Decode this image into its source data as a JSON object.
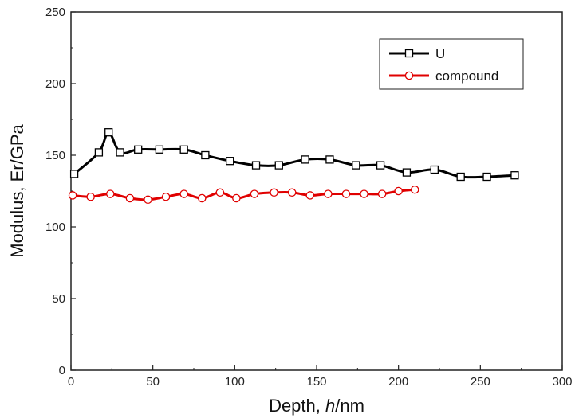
{
  "chart_data": {
    "type": "line",
    "xlabel_parts": [
      "Depth, ",
      "h",
      "/nm"
    ],
    "ylabel": "Modulus, Er/GPa",
    "xlim": [
      0,
      300
    ],
    "ylim": [
      0,
      250
    ],
    "xticks": [
      0,
      50,
      100,
      150,
      200,
      250,
      300
    ],
    "yticks": [
      0,
      50,
      100,
      150,
      200,
      250
    ],
    "grid": false,
    "legend_position": "top-right",
    "series": [
      {
        "name": "U",
        "color": "#000000",
        "marker": "square",
        "x": [
          2,
          17,
          23,
          30,
          41,
          54,
          69,
          82,
          97,
          113,
          127,
          143,
          158,
          174,
          189,
          205,
          222,
          238,
          254,
          271
        ],
        "y": [
          137,
          152,
          166,
          152,
          154,
          154,
          154,
          150,
          146,
          143,
          143,
          147,
          147,
          143,
          143,
          138,
          140,
          135,
          135,
          136
        ]
      },
      {
        "name": "compound",
        "color": "#e00000",
        "marker": "circle",
        "x": [
          1,
          12,
          24,
          36,
          47,
          58,
          69,
          80,
          91,
          101,
          112,
          124,
          135,
          146,
          157,
          168,
          179,
          190,
          200,
          210
        ],
        "y": [
          122,
          121,
          123,
          120,
          119,
          121,
          123,
          120,
          124,
          120,
          123,
          124,
          124,
          122,
          123,
          123,
          123,
          123,
          125,
          126
        ]
      }
    ]
  }
}
